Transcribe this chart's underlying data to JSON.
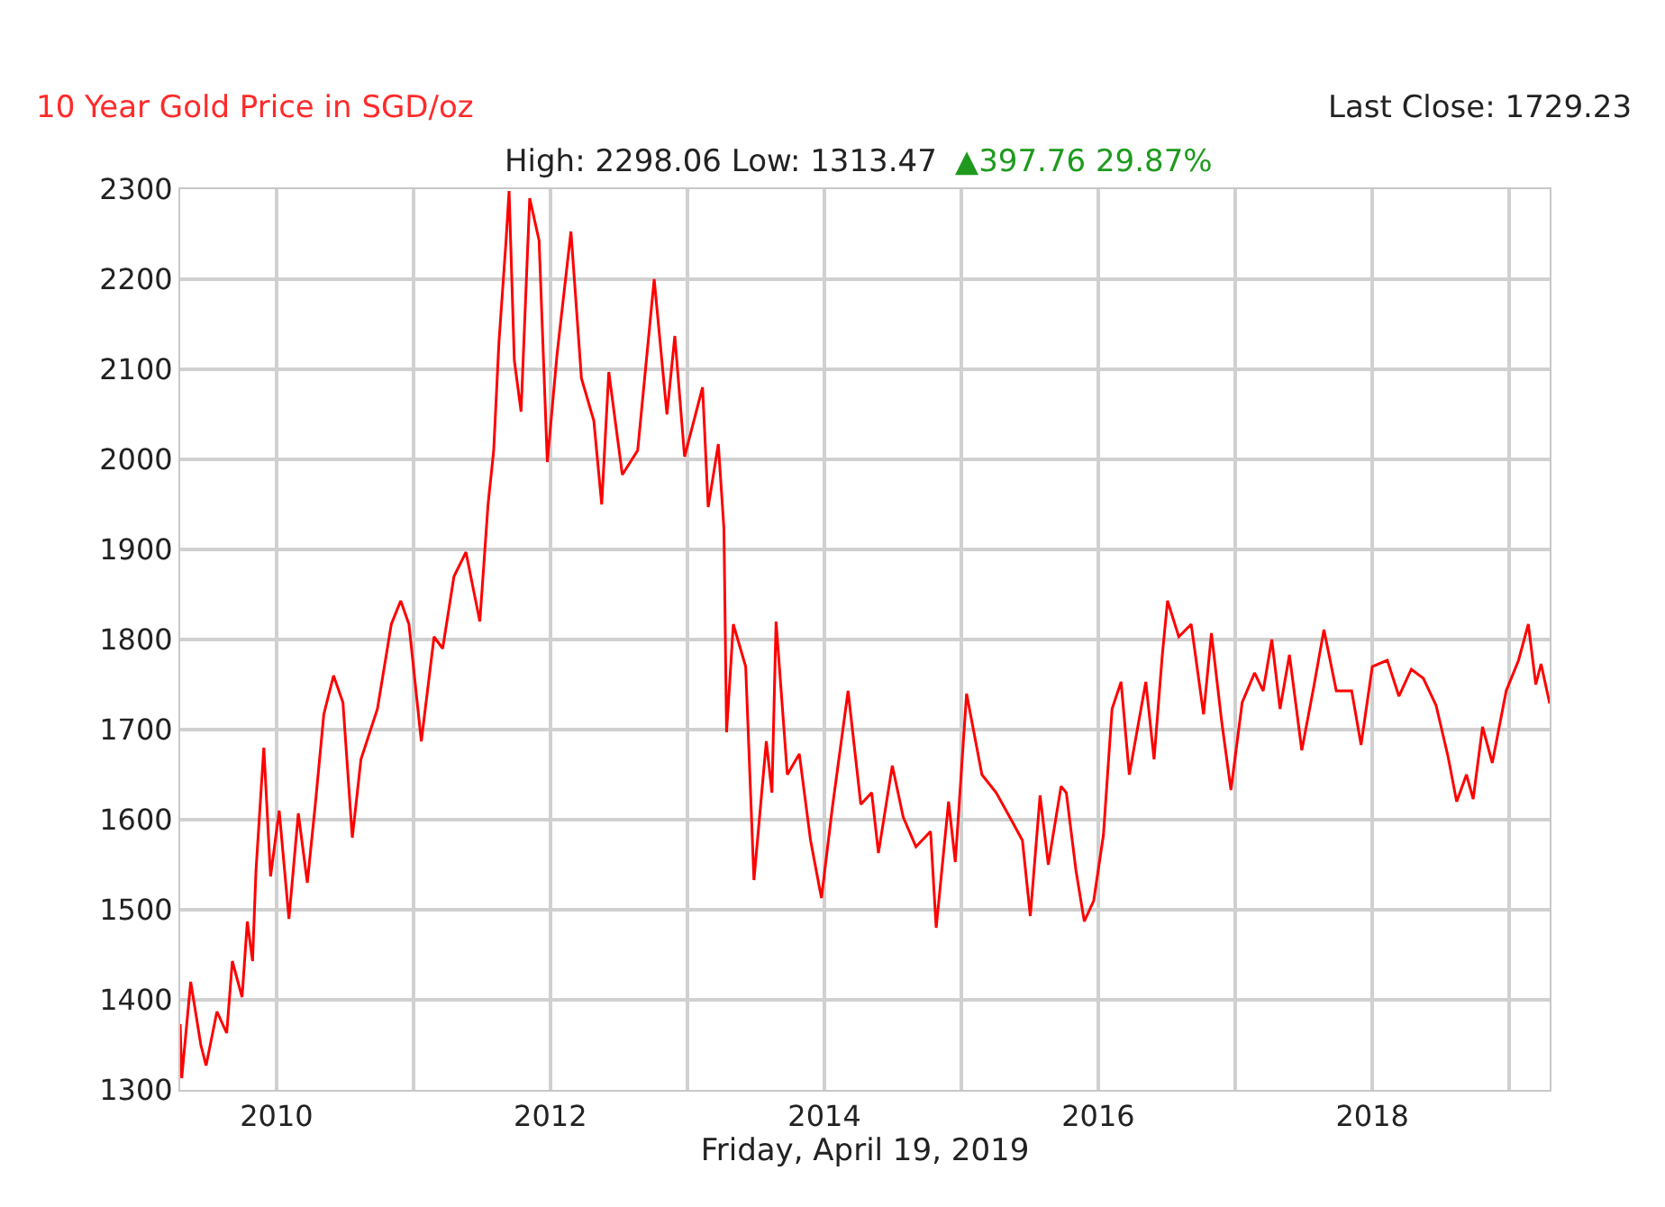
{
  "chart_data": {
    "type": "line",
    "title": "10 Year Gold Price in SGD/oz",
    "subtitle": "High: 2298.06 Low: 1313.47",
    "xlabel": "Friday, April 19, 2019",
    "annotations": [
      "Last Close: 1729.23",
      "▲397.76 29.87%"
    ],
    "x": [
      "2009-04-19",
      "2009-04-23",
      "2009-05-17",
      "2009-06-13",
      "2009-06-27",
      "2009-07-26",
      "2009-08-21",
      "2009-09-05",
      "2009-10-01",
      "2009-10-15",
      "2009-10-29",
      "2009-11-07",
      "2009-11-28",
      "2009-12-16",
      "2010-01-08",
      "2010-02-03",
      "2010-02-28",
      "2010-03-24",
      "2010-04-15",
      "2010-05-07",
      "2010-06-02",
      "2010-06-27",
      "2010-07-22",
      "2010-08-14",
      "2010-09-27",
      "2010-11-03",
      "2010-11-28",
      "2010-12-20",
      "2011-01-22",
      "2011-02-25",
      "2011-03-20",
      "2011-04-19",
      "2011-05-21",
      "2011-06-27",
      "2011-07-19",
      "2011-08-03",
      "2011-08-17",
      "2011-09-05",
      "2011-09-13",
      "2011-09-27",
      "2011-10-15",
      "2011-11-07",
      "2011-12-02",
      "2011-12-24",
      "2012-01-19",
      "2012-02-25",
      "2012-03-24",
      "2012-04-26",
      "2012-05-17",
      "2012-06-05",
      "2012-07-11",
      "2012-08-21",
      "2012-10-04",
      "2012-11-07",
      "2012-11-28",
      "2012-12-24",
      "2013-02-10",
      "2013-02-25",
      "2013-03-24",
      "2013-04-08",
      "2013-04-15",
      "2013-05-03",
      "2013-06-05",
      "2013-06-27",
      "2013-07-30",
      "2013-08-14",
      "2013-08-25",
      "2013-09-24",
      "2013-10-26",
      "2013-11-25",
      "2013-12-24",
      "2014-01-22",
      "2014-03-05",
      "2014-04-08",
      "2014-05-07",
      "2014-05-25",
      "2014-07-01",
      "2014-07-30",
      "2014-09-02",
      "2014-10-11",
      "2014-10-26",
      "2014-11-28",
      "2014-12-16",
      "2015-01-15",
      "2015-02-25",
      "2015-04-04",
      "2015-05-10",
      "2015-06-13",
      "2015-07-04",
      "2015-07-30",
      "2015-08-21",
      "2015-09-24",
      "2015-10-08",
      "2015-11-03",
      "2015-11-25",
      "2015-12-20",
      "2016-01-15",
      "2016-02-07",
      "2016-03-02",
      "2016-03-24",
      "2016-05-07",
      "2016-05-29",
      "2016-06-20",
      "2016-07-04",
      "2016-08-03",
      "2016-09-05",
      "2016-10-08",
      "2016-10-29",
      "2016-11-25",
      "2016-12-20",
      "2017-01-19",
      "2017-02-21",
      "2017-03-16",
      "2017-04-08",
      "2017-04-30",
      "2017-05-25",
      "2017-06-27",
      "2017-07-30",
      "2017-08-25",
      "2017-09-27",
      "2017-11-07",
      "2017-12-02",
      "2018-01-01",
      "2018-02-10",
      "2018-03-13",
      "2018-04-15",
      "2018-05-17",
      "2018-06-20",
      "2018-07-22",
      "2018-08-14",
      "2018-09-09",
      "2018-09-27",
      "2018-10-22",
      "2018-11-17",
      "2018-12-24",
      "2019-01-26",
      "2019-02-21",
      "2019-03-13",
      "2019-03-27",
      "2019-04-19"
    ],
    "series": [
      {
        "color": "#ff0000",
        "values": [
          1373,
          1313,
          1420,
          1350,
          1327,
          1387,
          1363,
          1443,
          1403,
          1487,
          1443,
          1543,
          1680,
          1537,
          1610,
          1490,
          1607,
          1530,
          1620,
          1717,
          1760,
          1730,
          1580,
          1667,
          1723,
          1817,
          1843,
          1817,
          1687,
          1803,
          1790,
          1870,
          1897,
          1820,
          1950,
          2010,
          2130,
          2243,
          2298,
          2110,
          2053,
          2290,
          2243,
          1997,
          2117,
          2253,
          2090,
          2043,
          1950,
          2097,
          1983,
          2010,
          2200,
          2050,
          2137,
          2003,
          2080,
          1947,
          2017,
          1923,
          1697,
          1817,
          1770,
          1533,
          1687,
          1630,
          1820,
          1650,
          1673,
          1577,
          1513,
          1613,
          1743,
          1617,
          1630,
          1563,
          1660,
          1603,
          1570,
          1587,
          1480,
          1620,
          1553,
          1740,
          1650,
          1630,
          1603,
          1577,
          1493,
          1627,
          1550,
          1637,
          1630,
          1543,
          1487,
          1510,
          1583,
          1723,
          1753,
          1650,
          1753,
          1667,
          1783,
          1843,
          1803,
          1817,
          1717,
          1807,
          1710,
          1633,
          1730,
          1763,
          1743,
          1800,
          1723,
          1783,
          1677,
          1750,
          1811,
          1743,
          1743,
          1683,
          1770,
          1777,
          1737,
          1767,
          1757,
          1727,
          1670,
          1620,
          1650,
          1623,
          1703,
          1663,
          1743,
          1777,
          1817,
          1750,
          1773,
          1729
        ]
      }
    ],
    "xlim": [
      "2009-04-19",
      "2019-04-19"
    ],
    "xticks": [
      {
        "value": "2010",
        "label": "2010"
      },
      {
        "value": "2011",
        "label": null
      },
      {
        "value": "2012",
        "label": "2012"
      },
      {
        "value": "2013",
        "label": null
      },
      {
        "value": "2014",
        "label": "2014"
      },
      {
        "value": "2015",
        "label": null
      },
      {
        "value": "2016",
        "label": "2016"
      },
      {
        "value": "2017",
        "label": null
      },
      {
        "value": "2018",
        "label": "2018"
      },
      {
        "value": "2019",
        "label": null
      }
    ],
    "ylim": [
      1300,
      2300
    ],
    "yticks": [
      1300,
      1400,
      1500,
      1600,
      1700,
      1800,
      1900,
      2000,
      2100,
      2200,
      2300
    ],
    "grid": true,
    "marker": "none",
    "line_style": "solid"
  }
}
